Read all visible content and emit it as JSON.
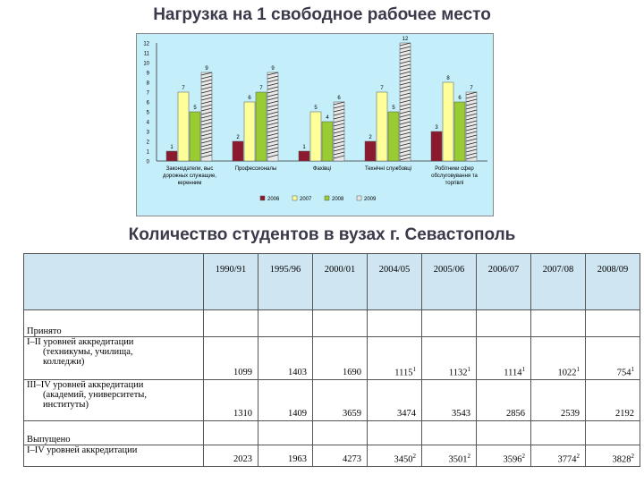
{
  "title_top": "Нагрузка на 1 свободное рабочее место",
  "title_table": "Количество студентов в вузах г. Севастополь",
  "chart_data": {
    "type": "bar",
    "categories": [
      "Законодатели, выс дорожных служащие, керенним",
      "Профессионалы",
      "Фахівці",
      "Технічні службовці",
      "Робітники сфер обслуговування та торгівлі"
    ],
    "series": [
      {
        "name": "2006",
        "color": "#8b1a2e",
        "values": [
          1,
          2,
          1,
          2,
          3
        ]
      },
      {
        "name": "2007",
        "color": "#ffff99",
        "values": [
          7,
          6,
          5,
          7,
          8
        ]
      },
      {
        "name": "2008",
        "color": "#99cc33",
        "values": [
          5,
          7,
          4,
          5,
          6
        ]
      },
      {
        "name": "2009",
        "color": "#e8e8e8",
        "values": [
          9,
          9,
          6,
          12,
          7
        ]
      }
    ],
    "value_labels": [
      [
        "1",
        "7",
        "5",
        "9"
      ],
      [
        "2",
        "6",
        "7",
        "9"
      ],
      [
        "1",
        "5",
        "4",
        "6"
      ],
      [
        "2",
        "7",
        "5",
        "12"
      ],
      [
        "3",
        "8",
        "6",
        "7"
      ]
    ],
    "ylim": [
      0,
      12
    ],
    "yticks": [
      "0",
      "1",
      "2",
      "3",
      "4",
      "5",
      "6",
      "7",
      "8",
      "9",
      "10",
      "11",
      "12"
    ],
    "legend": [
      "2006",
      "2007",
      "2008",
      "2009"
    ],
    "legend_position": "bottom"
  },
  "table": {
    "years": [
      "1990/91",
      "1995/96",
      "2000/01",
      "2004/05",
      "2005/06",
      "2006/07",
      "2007/08",
      "2008/09"
    ],
    "rows": [
      {
        "label": "Принято",
        "section": true,
        "values": []
      },
      {
        "label": "І–ІІ уровней аккредитации\n(техникумы, училища,\nколледжи)",
        "values": [
          {
            "v": "1099",
            "s": ""
          },
          {
            "v": "1403",
            "s": ""
          },
          {
            "v": "1690",
            "s": ""
          },
          {
            "v": "1115",
            "s": "1"
          },
          {
            "v": "1132",
            "s": "1"
          },
          {
            "v": "1114",
            "s": "1"
          },
          {
            "v": "1022",
            "s": "1"
          },
          {
            "v": "754",
            "s": "1"
          }
        ]
      },
      {
        "label": "ІІІ–ІV уровней аккредитации\n(академий, университеты,\nинституты)",
        "values": [
          {
            "v": "1310",
            "s": ""
          },
          {
            "v": "1409",
            "s": ""
          },
          {
            "v": "3659",
            "s": ""
          },
          {
            "v": "3474",
            "s": ""
          },
          {
            "v": "3543",
            "s": ""
          },
          {
            "v": "2856",
            "s": ""
          },
          {
            "v": "2539",
            "s": ""
          },
          {
            "v": "2192",
            "s": ""
          }
        ]
      },
      {
        "label": "Выпущено",
        "section": true,
        "values": []
      },
      {
        "label": "І–ІV уровней аккредитации",
        "values": [
          {
            "v": "2023",
            "s": ""
          },
          {
            "v": "1963",
            "s": ""
          },
          {
            "v": "4273",
            "s": ""
          },
          {
            "v": "3450",
            "s": "2"
          },
          {
            "v": "3501",
            "s": "2"
          },
          {
            "v": "3596",
            "s": "2"
          },
          {
            "v": "3774",
            "s": "2"
          },
          {
            "v": "3828",
            "s": "2"
          }
        ]
      }
    ]
  }
}
